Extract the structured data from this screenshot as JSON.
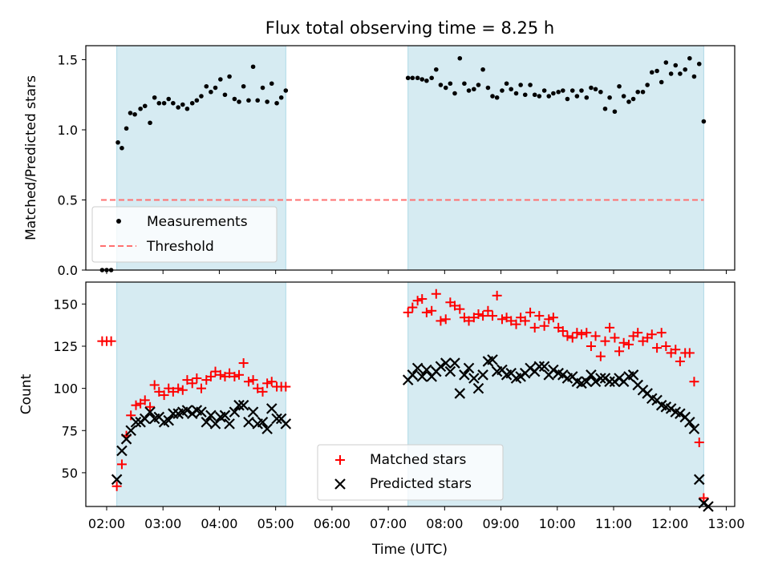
{
  "chart_data": [
    {
      "type": "scatter",
      "title": "Flux total observing time = 8.25 h",
      "xlabel": "",
      "ylabel": "Matched/Predicted stars",
      "xlim": [
        1.63,
        13.15
      ],
      "ylim": [
        0,
        1.6
      ],
      "yticks": [
        0,
        0.5,
        1.0,
        1.5
      ],
      "ytick_labels": [
        "0.0",
        "0.5",
        "1.0",
        "1.5"
      ],
      "shaded_intervals": [
        [
          2.18,
          5.18
        ],
        [
          7.35,
          12.6
        ]
      ],
      "threshold": {
        "value": 0.5,
        "x_range": [
          1.9,
          12.6
        ],
        "color": "#ff7070"
      },
      "legend": {
        "position": "lower-left",
        "entries": [
          "Measurements",
          "Threshold"
        ]
      },
      "series": [
        {
          "name": "Measurements",
          "color": "#000000",
          "x": [
            1.92,
            2.0,
            2.08,
            2.2,
            2.27,
            2.35,
            2.42,
            2.5,
            2.6,
            2.68,
            2.77,
            2.85,
            2.93,
            3.02,
            3.1,
            3.18,
            3.27,
            3.35,
            3.43,
            3.52,
            3.6,
            3.68,
            3.77,
            3.85,
            3.93,
            4.02,
            4.1,
            4.18,
            4.27,
            4.35,
            4.43,
            4.52,
            4.6,
            4.68,
            4.77,
            4.85,
            4.93,
            5.02,
            5.1,
            5.18,
            7.35,
            7.43,
            7.52,
            7.6,
            7.68,
            7.77,
            7.85,
            7.93,
            8.02,
            8.1,
            8.18,
            8.27,
            8.35,
            8.43,
            8.52,
            8.6,
            8.68,
            8.77,
            8.85,
            8.93,
            9.02,
            9.1,
            9.18,
            9.27,
            9.35,
            9.43,
            9.52,
            9.6,
            9.68,
            9.77,
            9.85,
            9.93,
            10.02,
            10.1,
            10.18,
            10.27,
            10.35,
            10.43,
            10.52,
            10.6,
            10.68,
            10.77,
            10.85,
            10.93,
            11.02,
            11.1,
            11.18,
            11.27,
            11.35,
            11.43,
            11.52,
            11.6,
            11.68,
            11.77,
            11.85,
            11.93,
            12.02,
            12.1,
            12.18,
            12.27,
            12.35,
            12.43,
            12.52,
            12.6
          ],
          "y": [
            0.0,
            0.0,
            0.0,
            0.91,
            0.87,
            1.01,
            1.12,
            1.11,
            1.15,
            1.17,
            1.05,
            1.23,
            1.19,
            1.19,
            1.22,
            1.19,
            1.16,
            1.18,
            1.15,
            1.19,
            1.21,
            1.24,
            1.31,
            1.27,
            1.3,
            1.36,
            1.25,
            1.38,
            1.22,
            1.2,
            1.31,
            1.21,
            1.45,
            1.21,
            1.3,
            1.2,
            1.33,
            1.19,
            1.23,
            1.28,
            1.37,
            1.37,
            1.37,
            1.36,
            1.35,
            1.37,
            1.43,
            1.32,
            1.3,
            1.33,
            1.26,
            1.51,
            1.33,
            1.28,
            1.29,
            1.32,
            1.43,
            1.3,
            1.24,
            1.23,
            1.28,
            1.33,
            1.29,
            1.26,
            1.32,
            1.25,
            1.32,
            1.25,
            1.24,
            1.28,
            1.24,
            1.26,
            1.27,
            1.28,
            1.22,
            1.28,
            1.24,
            1.28,
            1.23,
            1.3,
            1.29,
            1.27,
            1.15,
            1.23,
            1.13,
            1.31,
            1.24,
            1.2,
            1.22,
            1.27,
            1.27,
            1.32,
            1.41,
            1.42,
            1.34,
            1.48,
            1.4,
            1.46,
            1.4,
            1.43,
            1.51,
            1.38,
            1.47,
            1.06
          ]
        },
        {
          "name": "Threshold",
          "color": "#ff7070",
          "x": [
            1.9,
            12.6
          ],
          "y": [
            0.5,
            0.5
          ]
        }
      ]
    },
    {
      "type": "scatter",
      "title": "",
      "xlabel": "Time (UTC)",
      "ylabel": "Count",
      "xlim": [
        1.63,
        13.15
      ],
      "ylim": [
        30,
        163
      ],
      "yticks": [
        50,
        75,
        100,
        125,
        150
      ],
      "ytick_labels": [
        "50",
        "75",
        "100",
        "125",
        "150"
      ],
      "xticks": [
        2,
        3,
        4,
        5,
        6,
        7,
        8,
        9,
        10,
        11,
        12,
        13
      ],
      "xtick_labels": [
        "02:00",
        "03:00",
        "04:00",
        "05:00",
        "06:00",
        "07:00",
        "08:00",
        "09:00",
        "10:00",
        "11:00",
        "12:00",
        "13:00"
      ],
      "shaded_intervals": [
        [
          2.18,
          5.18
        ],
        [
          7.35,
          12.6
        ]
      ],
      "legend": {
        "position": "lower-center",
        "entries": [
          "Matched stars",
          "Predicted stars"
        ]
      },
      "series": [
        {
          "name": "Matched stars",
          "marker": "+",
          "color": "#ff0000",
          "x": [
            1.92,
            2.0,
            2.08,
            2.18,
            2.27,
            2.35,
            2.43,
            2.52,
            2.6,
            2.68,
            2.77,
            2.85,
            2.93,
            3.02,
            3.1,
            3.18,
            3.27,
            3.35,
            3.43,
            3.52,
            3.6,
            3.68,
            3.77,
            3.85,
            3.93,
            4.02,
            4.1,
            4.18,
            4.27,
            4.35,
            4.43,
            4.52,
            4.6,
            4.68,
            4.77,
            4.85,
            4.93,
            5.02,
            5.1,
            5.18,
            7.35,
            7.43,
            7.52,
            7.6,
            7.68,
            7.77,
            7.85,
            7.93,
            8.02,
            8.1,
            8.18,
            8.27,
            8.35,
            8.43,
            8.52,
            8.6,
            8.68,
            8.77,
            8.85,
            8.93,
            9.02,
            9.1,
            9.18,
            9.27,
            9.35,
            9.43,
            9.52,
            9.6,
            9.68,
            9.77,
            9.85,
            9.93,
            10.02,
            10.1,
            10.18,
            10.27,
            10.35,
            10.43,
            10.52,
            10.6,
            10.68,
            10.77,
            10.85,
            10.93,
            11.02,
            11.1,
            11.18,
            11.27,
            11.35,
            11.43,
            11.52,
            11.6,
            11.68,
            11.77,
            11.85,
            11.93,
            12.02,
            12.1,
            12.18,
            12.27,
            12.35,
            12.43,
            12.52,
            12.6
          ],
          "y": [
            128,
            128,
            128,
            42,
            55,
            72,
            84,
            90,
            91,
            93,
            89,
            102,
            98,
            96,
            100,
            98,
            100,
            99,
            105,
            103,
            106,
            100,
            105,
            107,
            110,
            108,
            107,
            109,
            107,
            108,
            115,
            104,
            105,
            100,
            98,
            103,
            104,
            101,
            101,
            101,
            145,
            148,
            152,
            153,
            145,
            146,
            156,
            140,
            141,
            151,
            149,
            147,
            142,
            140,
            142,
            144,
            143,
            146,
            143,
            155,
            141,
            142,
            140,
            138,
            142,
            140,
            145,
            136,
            143,
            137,
            141,
            142,
            136,
            134,
            131,
            130,
            133,
            132,
            133,
            125,
            131,
            119,
            128,
            136,
            130,
            122,
            127,
            126,
            131,
            133,
            128,
            130,
            132,
            124,
            133,
            125,
            121,
            123,
            116,
            121,
            121,
            104,
            68,
            35
          ]
        },
        {
          "name": "Predicted stars",
          "marker": "x",
          "color": "#000000",
          "x": [
            2.18,
            2.27,
            2.35,
            2.43,
            2.52,
            2.6,
            2.68,
            2.77,
            2.85,
            2.93,
            3.02,
            3.1,
            3.18,
            3.27,
            3.35,
            3.43,
            3.52,
            3.6,
            3.68,
            3.77,
            3.85,
            3.93,
            4.02,
            4.1,
            4.18,
            4.27,
            4.35,
            4.43,
            4.52,
            4.6,
            4.68,
            4.77,
            4.85,
            4.93,
            5.02,
            5.1,
            5.18,
            7.35,
            7.43,
            7.52,
            7.6,
            7.68,
            7.77,
            7.85,
            7.93,
            8.02,
            8.1,
            8.18,
            8.27,
            8.35,
            8.43,
            8.52,
            8.6,
            8.68,
            8.77,
            8.85,
            8.93,
            9.02,
            9.1,
            9.18,
            9.27,
            9.35,
            9.43,
            9.52,
            9.6,
            9.68,
            9.77,
            9.85,
            9.93,
            10.02,
            10.1,
            10.18,
            10.27,
            10.35,
            10.43,
            10.52,
            10.6,
            10.68,
            10.77,
            10.85,
            10.93,
            11.02,
            11.1,
            11.18,
            11.27,
            11.35,
            11.43,
            11.52,
            11.6,
            11.68,
            11.77,
            11.85,
            11.93,
            12.02,
            12.1,
            12.18,
            12.27,
            12.35,
            12.43,
            12.52,
            12.6,
            12.68
          ],
          "y": [
            46,
            63,
            70,
            75,
            80,
            80,
            82,
            86,
            82,
            83,
            80,
            81,
            85,
            85,
            86,
            87,
            85,
            87,
            86,
            80,
            84,
            79,
            83,
            84,
            79,
            86,
            90,
            90,
            80,
            86,
            79,
            80,
            76,
            88,
            82,
            82,
            79,
            105,
            108,
            112,
            107,
            111,
            107,
            110,
            113,
            115,
            110,
            115,
            97,
            108,
            112,
            106,
            100,
            108,
            116,
            117,
            110,
            111,
            108,
            109,
            106,
            107,
            109,
            112,
            110,
            113,
            113,
            108,
            111,
            109,
            108,
            106,
            107,
            104,
            103,
            104,
            108,
            104,
            106,
            106,
            104,
            104,
            106,
            104,
            107,
            108,
            102,
            99,
            97,
            94,
            93,
            90,
            89,
            88,
            86,
            85,
            83,
            80,
            76,
            46,
            32,
            30
          ]
        }
      ]
    }
  ]
}
